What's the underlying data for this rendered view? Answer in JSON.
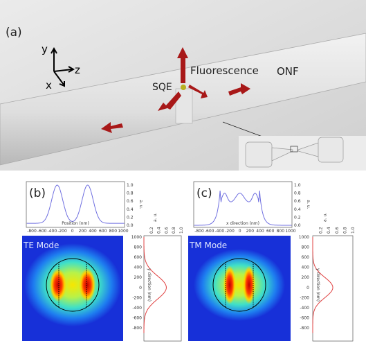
{
  "panel_a": {
    "label": "(a)",
    "axes": {
      "y": "y",
      "z": "z",
      "x": "x"
    },
    "annotations": {
      "sqe": "SQE",
      "fluorescence": "Fluorescence",
      "onf": "ONF"
    }
  },
  "panel_b": {
    "label": "(b)",
    "mode": "TE Mode",
    "profile_x": {
      "label": "Position (nm)",
      "ticks": [
        -800,
        -600,
        -400,
        -200,
        0,
        200,
        400,
        600,
        800,
        1000
      ]
    },
    "profile_y": {
      "label": "a. u.",
      "ticks": [
        {
          "value": 0,
          "label": "0.0"
        },
        {
          "value": 0.2,
          "label": "0.2"
        },
        {
          "value": 0.4,
          "label": "0.4"
        },
        {
          "value": 0.6,
          "label": "0.6"
        },
        {
          "value": 0.8,
          "label": "0.8"
        },
        {
          "value": 1,
          "label": "1.0"
        }
      ]
    },
    "map_y": {
      "label": "y direction (nm)",
      "ticks": [
        1000,
        800,
        600,
        400,
        200,
        0,
        -200,
        -400,
        -600,
        -800
      ]
    },
    "side_x": {
      "label": "a. u.",
      "ticks": [
        0.2,
        0.4,
        0.6,
        0.8,
        {
          "value": 1,
          "label": "1.0"
        }
      ]
    }
  },
  "panel_c": {
    "label": "(c)",
    "mode": "TM Mode",
    "profile_x": {
      "label": "x direction (nm)",
      "ticks": [
        -800,
        -600,
        -400,
        -200,
        0,
        200,
        400,
        600,
        800,
        1000
      ]
    },
    "profile_y": {
      "label": "a. u.",
      "ticks": [
        {
          "value": 0,
          "label": "0.0"
        },
        {
          "value": 0.2,
          "label": "0.2"
        },
        {
          "value": 0.4,
          "label": "0.4"
        },
        {
          "value": 0.6,
          "label": "0.6"
        },
        {
          "value": 0.8,
          "label": "0.8"
        },
        {
          "value": 1,
          "label": "1.0"
        }
      ]
    },
    "map_y": {
      "label": "y direction (nm)",
      "ticks": [
        1000,
        800,
        600,
        400,
        200,
        0,
        -200,
        -400,
        -600,
        -800
      ]
    },
    "side_x": {
      "label": "a. u.",
      "ticks": [
        0.2,
        0.4,
        0.6,
        0.8,
        {
          "value": 1,
          "label": "1.0"
        }
      ]
    }
  }
}
